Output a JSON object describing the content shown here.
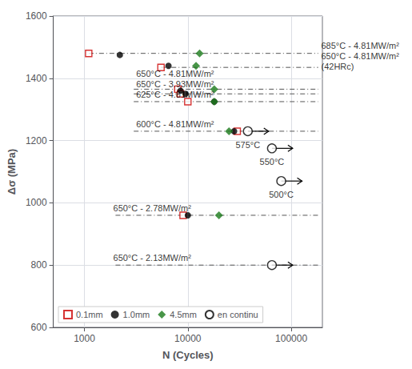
{
  "chart_data": {
    "type": "scatter",
    "xlabel": "N (Cycles)",
    "ylabel": "Δσ (MPa)",
    "log": "x",
    "xlim": [
      500,
      200000
    ],
    "xticks": [
      1000,
      10000,
      100000
    ],
    "ylim": [
      600,
      1600
    ],
    "yticks": [
      600,
      800,
      1000,
      1200,
      1400,
      1600
    ],
    "grid": true,
    "legend": "lower left",
    "series": [
      {
        "name": "0.1mm",
        "color": "#cc0000",
        "marker": "open square",
        "x": [
          1100,
          5500,
          8000,
          8500,
          10000,
          30000,
          9000
        ],
        "values": [
          1480,
          1435,
          1365,
          1350,
          1325,
          1230,
          960
        ]
      },
      {
        "name": "1.0mm",
        "color": "#000000",
        "marker": "circle",
        "x": [
          2200,
          6500,
          8500,
          9500,
          18000,
          28000,
          10000
        ],
        "values": [
          1475,
          1440,
          1360,
          1350,
          1325,
          1230,
          960
        ]
      },
      {
        "name": "4.5mm",
        "color": "#1a7a1a",
        "marker": "diamond",
        "x": [
          13000,
          12000,
          18000,
          18000,
          25000,
          20000
        ],
        "values": [
          1480,
          1440,
          1365,
          1325,
          1230,
          960
        ]
      },
      {
        "name": "en continu",
        "color": "#000000",
        "marker": "open circle",
        "x": [
          38000,
          65000,
          80000,
          65000
        ],
        "values": [
          1230,
          1175,
          1070,
          800
        ],
        "labels": [
          "575°C",
          "550°C",
          "500°C",
          null
        ]
      }
    ],
    "reference_lines": {
      "color": "#555555",
      "line_style": "dashdot",
      "lines": [
        {
          "y": 1480,
          "x0": 1100,
          "x1": 182000
        },
        {
          "y": 1435,
          "x0": 5500,
          "x1": 182000
        },
        {
          "y": 1365,
          "x0": 3000,
          "x1": 182000
        },
        {
          "y": 1350,
          "x0": 3000,
          "x1": 182000
        },
        {
          "y": 1325,
          "x0": 3000,
          "x1": 182000
        },
        {
          "y": 1230,
          "x0": 3000,
          "x1": 182000
        },
        {
          "y": 960,
          "x0": 2000,
          "x1": 182000
        },
        {
          "y": 800,
          "x0": 2000,
          "x1": 182000
        }
      ]
    },
    "annotations": [
      {
        "text": "685°C - 4.81MW/m²",
        "x": 184600,
        "y": 1480
      },
      {
        "text": "650°C - 4.81MW/m²",
        "x": 184600,
        "y": 1440
      },
      {
        "text": "(42HRc)",
        "x": 184600,
        "y": 1420
      },
      {
        "text": "650°C - 4.81MW/m²",
        "x": 3000,
        "y": 1369
      },
      {
        "text": "650°C - 3.93MW/m²",
        "x": 3000,
        "y": 1354
      },
      {
        "text": "625°C - 4.81MW/m²",
        "x": 3000,
        "y": 1329
      },
      {
        "text": "600°C - 4.81MW/m²",
        "x": 3000,
        "y": 1234
      },
      {
        "text": "650°C - 2.78MW/m²",
        "x": 1800,
        "y": 964
      },
      {
        "text": "650°C - 2.13MW/m²",
        "x": 1800,
        "y": 804
      }
    ]
  }
}
